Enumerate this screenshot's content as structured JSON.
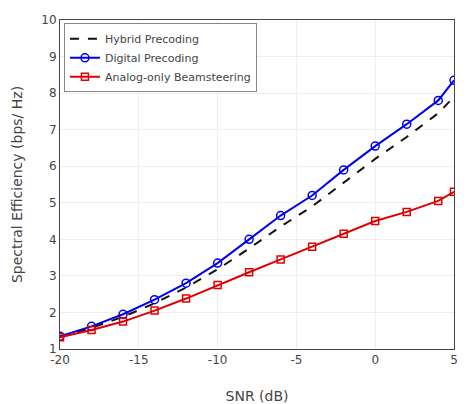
{
  "chart_data": {
    "type": "line",
    "xlabel": "SNR (dB)",
    "ylabel": "Spectral Efficiency (bps/ Hz)",
    "x": [
      -20,
      -18,
      -16,
      -14,
      -12,
      -10,
      -8,
      -6,
      -4,
      -2,
      0,
      2,
      4,
      5
    ],
    "series": [
      {
        "name": "Hybrid Precoding",
        "color": "#111111",
        "line_style": "dashed",
        "values": [
          1.33,
          1.58,
          1.88,
          2.25,
          2.68,
          3.18,
          3.75,
          4.35,
          4.9,
          5.55,
          6.2,
          6.8,
          7.45,
          7.9
        ]
      },
      {
        "name": "Digital Precoding",
        "color": "#0000ee",
        "line_style": "solid",
        "marker": "circle",
        "values": [
          1.35,
          1.62,
          1.95,
          2.35,
          2.8,
          3.35,
          4.0,
          4.65,
          5.2,
          5.9,
          6.55,
          7.15,
          7.8,
          8.35
        ]
      },
      {
        "name": "Analog-only Beamsteering",
        "color": "#dd0000",
        "line_style": "solid",
        "marker": "square",
        "values": [
          1.32,
          1.52,
          1.75,
          2.05,
          2.38,
          2.75,
          3.1,
          3.45,
          3.8,
          4.15,
          4.5,
          4.75,
          5.05,
          5.3
        ]
      }
    ],
    "xlim": [
      -20,
      5
    ],
    "ylim": [
      1,
      10
    ],
    "xticks": [
      -20,
      -15,
      -10,
      -5,
      0,
      5
    ],
    "yticks": [
      1,
      2,
      3,
      4,
      5,
      6,
      7,
      8,
      9,
      10
    ],
    "grid": true,
    "legend": "upper left"
  }
}
